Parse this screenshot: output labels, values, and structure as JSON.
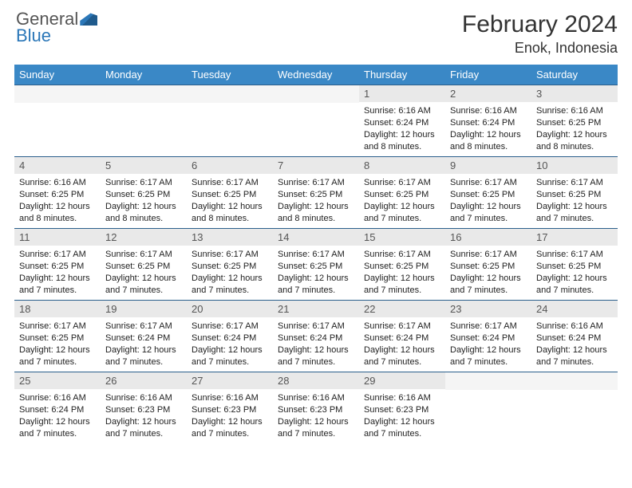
{
  "brand": {
    "line1": "General",
    "line2": "Blue"
  },
  "title": "February 2024",
  "location": "Enok, Indonesia",
  "colors": {
    "header_bg": "#3a88c6",
    "header_text": "#ffffff",
    "cell_border": "#2b5f8c",
    "daynum_bg": "#e9e9e9",
    "text": "#333333"
  },
  "weekdays": [
    "Sunday",
    "Monday",
    "Tuesday",
    "Wednesday",
    "Thursday",
    "Friday",
    "Saturday"
  ],
  "grid": [
    [
      {
        "n": "",
        "l1": "",
        "l2": "",
        "l3": "",
        "l4": ""
      },
      {
        "n": "",
        "l1": "",
        "l2": "",
        "l3": "",
        "l4": ""
      },
      {
        "n": "",
        "l1": "",
        "l2": "",
        "l3": "",
        "l4": ""
      },
      {
        "n": "",
        "l1": "",
        "l2": "",
        "l3": "",
        "l4": ""
      },
      {
        "n": "1",
        "l1": "Sunrise: 6:16 AM",
        "l2": "Sunset: 6:24 PM",
        "l3": "Daylight: 12 hours",
        "l4": "and 8 minutes."
      },
      {
        "n": "2",
        "l1": "Sunrise: 6:16 AM",
        "l2": "Sunset: 6:24 PM",
        "l3": "Daylight: 12 hours",
        "l4": "and 8 minutes."
      },
      {
        "n": "3",
        "l1": "Sunrise: 6:16 AM",
        "l2": "Sunset: 6:25 PM",
        "l3": "Daylight: 12 hours",
        "l4": "and 8 minutes."
      }
    ],
    [
      {
        "n": "4",
        "l1": "Sunrise: 6:16 AM",
        "l2": "Sunset: 6:25 PM",
        "l3": "Daylight: 12 hours",
        "l4": "and 8 minutes."
      },
      {
        "n": "5",
        "l1": "Sunrise: 6:17 AM",
        "l2": "Sunset: 6:25 PM",
        "l3": "Daylight: 12 hours",
        "l4": "and 8 minutes."
      },
      {
        "n": "6",
        "l1": "Sunrise: 6:17 AM",
        "l2": "Sunset: 6:25 PM",
        "l3": "Daylight: 12 hours",
        "l4": "and 8 minutes."
      },
      {
        "n": "7",
        "l1": "Sunrise: 6:17 AM",
        "l2": "Sunset: 6:25 PM",
        "l3": "Daylight: 12 hours",
        "l4": "and 8 minutes."
      },
      {
        "n": "8",
        "l1": "Sunrise: 6:17 AM",
        "l2": "Sunset: 6:25 PM",
        "l3": "Daylight: 12 hours",
        "l4": "and 7 minutes."
      },
      {
        "n": "9",
        "l1": "Sunrise: 6:17 AM",
        "l2": "Sunset: 6:25 PM",
        "l3": "Daylight: 12 hours",
        "l4": "and 7 minutes."
      },
      {
        "n": "10",
        "l1": "Sunrise: 6:17 AM",
        "l2": "Sunset: 6:25 PM",
        "l3": "Daylight: 12 hours",
        "l4": "and 7 minutes."
      }
    ],
    [
      {
        "n": "11",
        "l1": "Sunrise: 6:17 AM",
        "l2": "Sunset: 6:25 PM",
        "l3": "Daylight: 12 hours",
        "l4": "and 7 minutes."
      },
      {
        "n": "12",
        "l1": "Sunrise: 6:17 AM",
        "l2": "Sunset: 6:25 PM",
        "l3": "Daylight: 12 hours",
        "l4": "and 7 minutes."
      },
      {
        "n": "13",
        "l1": "Sunrise: 6:17 AM",
        "l2": "Sunset: 6:25 PM",
        "l3": "Daylight: 12 hours",
        "l4": "and 7 minutes."
      },
      {
        "n": "14",
        "l1": "Sunrise: 6:17 AM",
        "l2": "Sunset: 6:25 PM",
        "l3": "Daylight: 12 hours",
        "l4": "and 7 minutes."
      },
      {
        "n": "15",
        "l1": "Sunrise: 6:17 AM",
        "l2": "Sunset: 6:25 PM",
        "l3": "Daylight: 12 hours",
        "l4": "and 7 minutes."
      },
      {
        "n": "16",
        "l1": "Sunrise: 6:17 AM",
        "l2": "Sunset: 6:25 PM",
        "l3": "Daylight: 12 hours",
        "l4": "and 7 minutes."
      },
      {
        "n": "17",
        "l1": "Sunrise: 6:17 AM",
        "l2": "Sunset: 6:25 PM",
        "l3": "Daylight: 12 hours",
        "l4": "and 7 minutes."
      }
    ],
    [
      {
        "n": "18",
        "l1": "Sunrise: 6:17 AM",
        "l2": "Sunset: 6:25 PM",
        "l3": "Daylight: 12 hours",
        "l4": "and 7 minutes."
      },
      {
        "n": "19",
        "l1": "Sunrise: 6:17 AM",
        "l2": "Sunset: 6:24 PM",
        "l3": "Daylight: 12 hours",
        "l4": "and 7 minutes."
      },
      {
        "n": "20",
        "l1": "Sunrise: 6:17 AM",
        "l2": "Sunset: 6:24 PM",
        "l3": "Daylight: 12 hours",
        "l4": "and 7 minutes."
      },
      {
        "n": "21",
        "l1": "Sunrise: 6:17 AM",
        "l2": "Sunset: 6:24 PM",
        "l3": "Daylight: 12 hours",
        "l4": "and 7 minutes."
      },
      {
        "n": "22",
        "l1": "Sunrise: 6:17 AM",
        "l2": "Sunset: 6:24 PM",
        "l3": "Daylight: 12 hours",
        "l4": "and 7 minutes."
      },
      {
        "n": "23",
        "l1": "Sunrise: 6:17 AM",
        "l2": "Sunset: 6:24 PM",
        "l3": "Daylight: 12 hours",
        "l4": "and 7 minutes."
      },
      {
        "n": "24",
        "l1": "Sunrise: 6:16 AM",
        "l2": "Sunset: 6:24 PM",
        "l3": "Daylight: 12 hours",
        "l4": "and 7 minutes."
      }
    ],
    [
      {
        "n": "25",
        "l1": "Sunrise: 6:16 AM",
        "l2": "Sunset: 6:24 PM",
        "l3": "Daylight: 12 hours",
        "l4": "and 7 minutes."
      },
      {
        "n": "26",
        "l1": "Sunrise: 6:16 AM",
        "l2": "Sunset: 6:23 PM",
        "l3": "Daylight: 12 hours",
        "l4": "and 7 minutes."
      },
      {
        "n": "27",
        "l1": "Sunrise: 6:16 AM",
        "l2": "Sunset: 6:23 PM",
        "l3": "Daylight: 12 hours",
        "l4": "and 7 minutes."
      },
      {
        "n": "28",
        "l1": "Sunrise: 6:16 AM",
        "l2": "Sunset: 6:23 PM",
        "l3": "Daylight: 12 hours",
        "l4": "and 7 minutes."
      },
      {
        "n": "29",
        "l1": "Sunrise: 6:16 AM",
        "l2": "Sunset: 6:23 PM",
        "l3": "Daylight: 12 hours",
        "l4": "and 7 minutes."
      },
      {
        "n": "",
        "l1": "",
        "l2": "",
        "l3": "",
        "l4": ""
      },
      {
        "n": "",
        "l1": "",
        "l2": "",
        "l3": "",
        "l4": ""
      }
    ]
  ]
}
